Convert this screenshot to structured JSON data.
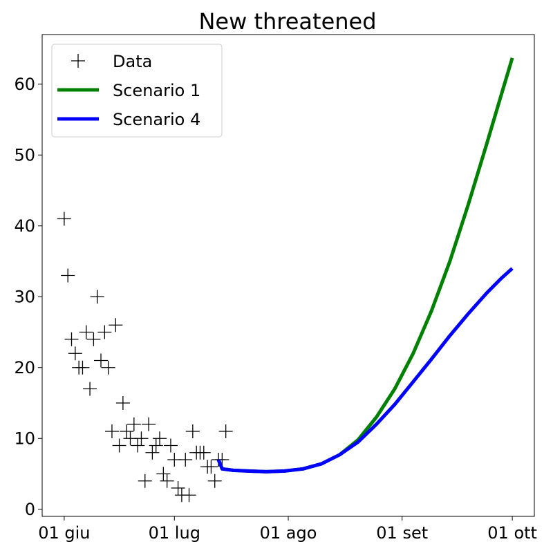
{
  "chart_data": {
    "type": "line",
    "title": "New threatened",
    "xlabel": "",
    "ylabel": "",
    "x_ticks": [
      {
        "day": 0,
        "label": "01 giu"
      },
      {
        "day": 30,
        "label": "01 lug"
      },
      {
        "day": 61,
        "label": "01 ago"
      },
      {
        "day": 92,
        "label": "01 set"
      },
      {
        "day": 122,
        "label": "01 ott"
      }
    ],
    "y_ticks": [
      0,
      10,
      20,
      30,
      40,
      50,
      60
    ],
    "xlim": [
      -6,
      128
    ],
    "ylim": [
      -1,
      67
    ],
    "grid": false,
    "legend_position": "top-left",
    "series": [
      {
        "name": "Data",
        "kind": "markers",
        "marker": "+",
        "color": "#000000",
        "points": [
          {
            "x": 0,
            "y": 41
          },
          {
            "x": 1,
            "y": 33
          },
          {
            "x": 2,
            "y": 24
          },
          {
            "x": 3,
            "y": 22
          },
          {
            "x": 4,
            "y": 20
          },
          {
            "x": 5,
            "y": 20
          },
          {
            "x": 6,
            "y": 25
          },
          {
            "x": 7,
            "y": 17
          },
          {
            "x": 8,
            "y": 24
          },
          {
            "x": 9,
            "y": 30
          },
          {
            "x": 10,
            "y": 21
          },
          {
            "x": 11,
            "y": 25
          },
          {
            "x": 12,
            "y": 20
          },
          {
            "x": 13,
            "y": 11
          },
          {
            "x": 14,
            "y": 26
          },
          {
            "x": 15,
            "y": 9
          },
          {
            "x": 16,
            "y": 15
          },
          {
            "x": 17,
            "y": 11
          },
          {
            "x": 18,
            "y": 10
          },
          {
            "x": 19,
            "y": 12
          },
          {
            "x": 20,
            "y": 9
          },
          {
            "x": 21,
            "y": 10
          },
          {
            "x": 22,
            "y": 4
          },
          {
            "x": 23,
            "y": 12
          },
          {
            "x": 24,
            "y": 8
          },
          {
            "x": 25,
            "y": 9
          },
          {
            "x": 26,
            "y": 10
          },
          {
            "x": 27,
            "y": 5
          },
          {
            "x": 28,
            "y": 4
          },
          {
            "x": 29,
            "y": 9
          },
          {
            "x": 30,
            "y": 7
          },
          {
            "x": 31,
            "y": 3
          },
          {
            "x": 32,
            "y": 2
          },
          {
            "x": 33,
            "y": 7
          },
          {
            "x": 34,
            "y": 2
          },
          {
            "x": 35,
            "y": 11
          },
          {
            "x": 36,
            "y": 8
          },
          {
            "x": 37,
            "y": 8
          },
          {
            "x": 38,
            "y": 8
          },
          {
            "x": 39,
            "y": 6
          },
          {
            "x": 40,
            "y": 6
          },
          {
            "x": 41,
            "y": 4
          },
          {
            "x": 42,
            "y": 7
          },
          {
            "x": 43,
            "y": 7
          },
          {
            "x": 44,
            "y": 11
          }
        ]
      },
      {
        "name": "Scenario 1",
        "kind": "line",
        "color": "#008000",
        "points": [
          {
            "x": 42,
            "y": 7.0
          },
          {
            "x": 43,
            "y": 5.7
          },
          {
            "x": 46,
            "y": 5.5
          },
          {
            "x": 50,
            "y": 5.4
          },
          {
            "x": 55,
            "y": 5.3
          },
          {
            "x": 60,
            "y": 5.4
          },
          {
            "x": 65,
            "y": 5.7
          },
          {
            "x": 70,
            "y": 6.4
          },
          {
            "x": 75,
            "y": 7.7
          },
          {
            "x": 80,
            "y": 9.8
          },
          {
            "x": 85,
            "y": 13.0
          },
          {
            "x": 90,
            "y": 17.0
          },
          {
            "x": 95,
            "y": 22.0
          },
          {
            "x": 100,
            "y": 28.0
          },
          {
            "x": 105,
            "y": 35.0
          },
          {
            "x": 110,
            "y": 43.0
          },
          {
            "x": 115,
            "y": 51.5
          },
          {
            "x": 119,
            "y": 58.5
          },
          {
            "x": 122,
            "y": 63.7
          }
        ]
      },
      {
        "name": "Scenario 4",
        "kind": "line",
        "color": "#0000ff",
        "points": [
          {
            "x": 42,
            "y": 7.0
          },
          {
            "x": 43,
            "y": 5.7
          },
          {
            "x": 46,
            "y": 5.5
          },
          {
            "x": 50,
            "y": 5.4
          },
          {
            "x": 55,
            "y": 5.3
          },
          {
            "x": 60,
            "y": 5.4
          },
          {
            "x": 65,
            "y": 5.7
          },
          {
            "x": 70,
            "y": 6.4
          },
          {
            "x": 75,
            "y": 7.7
          },
          {
            "x": 80,
            "y": 9.5
          },
          {
            "x": 85,
            "y": 12.0
          },
          {
            "x": 90,
            "y": 14.8
          },
          {
            "x": 95,
            "y": 18.0
          },
          {
            "x": 100,
            "y": 21.2
          },
          {
            "x": 105,
            "y": 24.5
          },
          {
            "x": 110,
            "y": 27.6
          },
          {
            "x": 115,
            "y": 30.5
          },
          {
            "x": 119,
            "y": 32.6
          },
          {
            "x": 122,
            "y": 34.0
          }
        ]
      }
    ]
  }
}
